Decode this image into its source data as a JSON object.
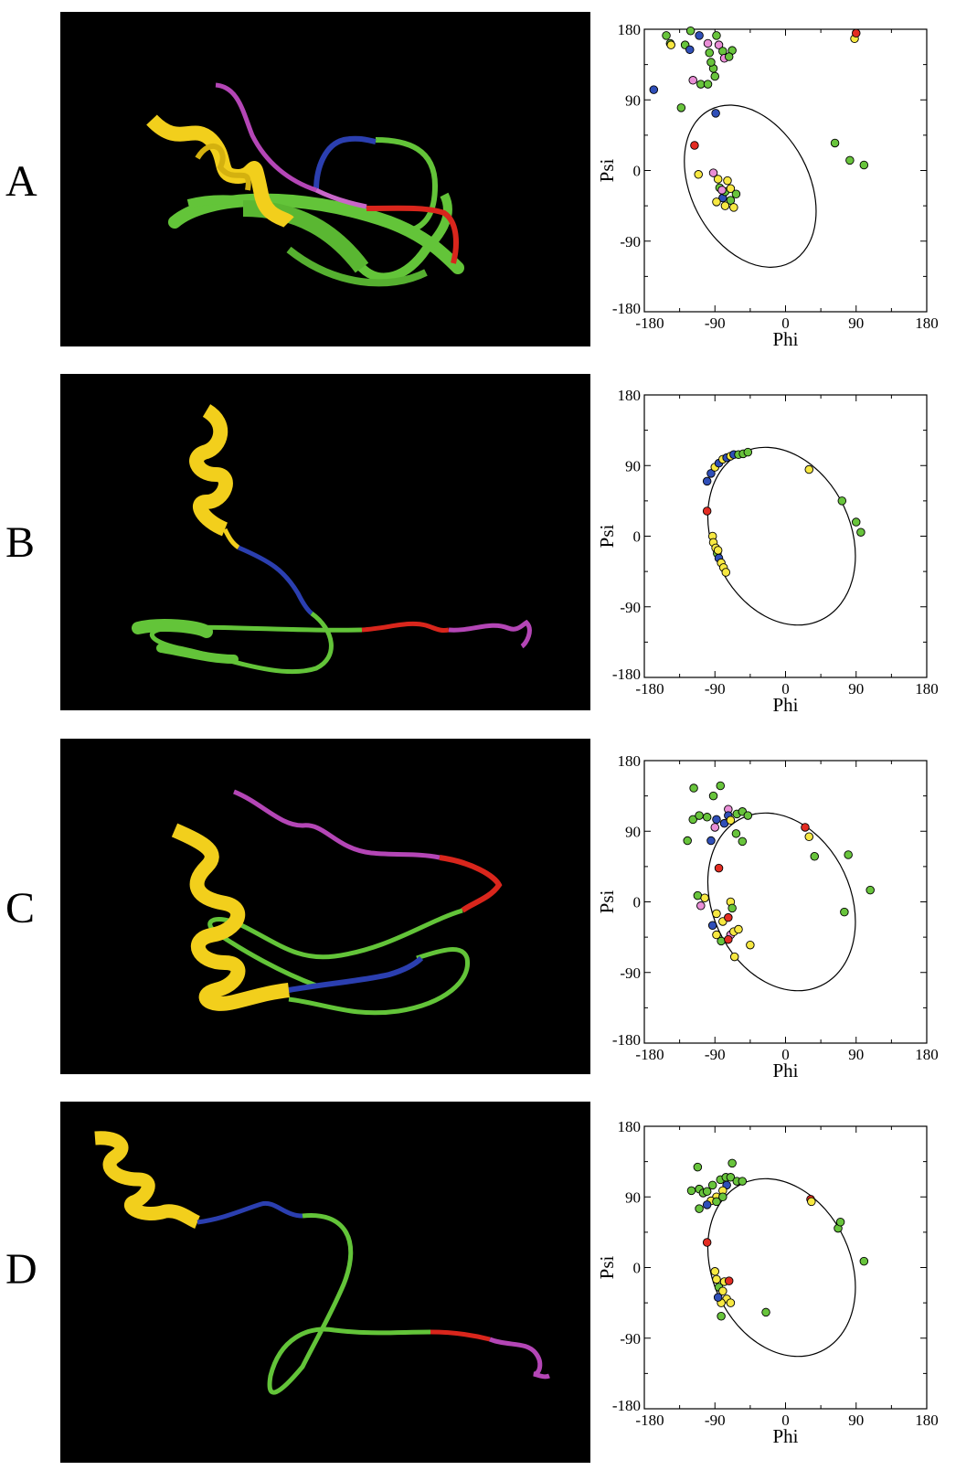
{
  "colors": {
    "helix": "#f2cf1c",
    "blue": "#2b3fb0",
    "green": "#63c439",
    "red": "#d9261c",
    "magenta": "#b446b6",
    "pink": "#e98ed6",
    "yellow_point": "#f7e842",
    "blue_point": "#2f4fb8",
    "green_point": "#68c43c",
    "red_point": "#e32c22"
  },
  "panels": [
    {
      "label": "A",
      "chart_data": {
        "type": "scatter",
        "title": "",
        "xlabel": "Phi",
        "ylabel": "Psi",
        "xlim": [
          -180,
          180
        ],
        "ylim": [
          -180,
          180
        ],
        "xticks": [
          "-180",
          "-90",
          "0",
          "90",
          "180"
        ],
        "yticks": [
          "180",
          "90",
          "0",
          "-90",
          "-180"
        ],
        "ellipse": {
          "cx": -45,
          "cy": -20,
          "rx": 75,
          "ry": 110,
          "rotation_deg": -28
        },
        "points": [
          {
            "phi": -152,
            "psi": 172,
            "c": "green"
          },
          {
            "phi": -147,
            "psi": 162,
            "c": "green"
          },
          {
            "phi": -146,
            "psi": 160,
            "c": "yellow"
          },
          {
            "phi": -128,
            "psi": 160,
            "c": "green"
          },
          {
            "phi": -121,
            "psi": 178,
            "c": "green"
          },
          {
            "phi": -110,
            "psi": 172,
            "c": "blue"
          },
          {
            "phi": -122,
            "psi": 154,
            "c": "blue"
          },
          {
            "phi": -99,
            "psi": 162,
            "c": "pink"
          },
          {
            "phi": -97,
            "psi": 150,
            "c": "green"
          },
          {
            "phi": -88,
            "psi": 172,
            "c": "green"
          },
          {
            "phi": -85,
            "psi": 160,
            "c": "pink"
          },
          {
            "phi": -80,
            "psi": 152,
            "c": "green"
          },
          {
            "phi": -78,
            "psi": 143,
            "c": "pink"
          },
          {
            "phi": -68,
            "psi": 153,
            "c": "green"
          },
          {
            "phi": -72,
            "psi": 145,
            "c": "green"
          },
          {
            "phi": -92,
            "psi": 130,
            "c": "green"
          },
          {
            "phi": -90,
            "psi": 120,
            "c": "green"
          },
          {
            "phi": -95,
            "psi": 138,
            "c": "green"
          },
          {
            "phi": -118,
            "psi": 115,
            "c": "pink"
          },
          {
            "phi": -108,
            "psi": 110,
            "c": "green"
          },
          {
            "phi": -99,
            "psi": 110,
            "c": "green"
          },
          {
            "phi": -133,
            "psi": 80,
            "c": "green"
          },
          {
            "phi": -168,
            "psi": 103,
            "c": "blue"
          },
          {
            "phi": -89,
            "psi": 73,
            "c": "blue"
          },
          {
            "phi": -116,
            "psi": 32,
            "c": "red"
          },
          {
            "phi": -111,
            "psi": -5,
            "c": "yellow"
          },
          {
            "phi": -92,
            "psi": -3,
            "c": "pink"
          },
          {
            "phi": -86,
            "psi": -11,
            "c": "yellow"
          },
          {
            "phi": -84,
            "psi": -22,
            "c": "green"
          },
          {
            "phi": -74,
            "psi": -13,
            "c": "yellow"
          },
          {
            "phi": -80,
            "psi": -35,
            "c": "blue"
          },
          {
            "phi": -77,
            "psi": -27,
            "c": "green"
          },
          {
            "phi": -70,
            "psi": -23,
            "c": "yellow"
          },
          {
            "phi": -88,
            "psi": -40,
            "c": "yellow"
          },
          {
            "phi": -77,
            "psi": -45,
            "c": "yellow"
          },
          {
            "phi": -70,
            "psi": -38,
            "c": "green"
          },
          {
            "phi": -66,
            "psi": -47,
            "c": "yellow"
          },
          {
            "phi": -63,
            "psi": -30,
            "c": "green"
          },
          {
            "phi": -81,
            "psi": -25,
            "c": "pink"
          },
          {
            "phi": 63,
            "psi": 35,
            "c": "green"
          },
          {
            "phi": 82,
            "psi": 13,
            "c": "green"
          },
          {
            "phi": 100,
            "psi": 7,
            "c": "green"
          },
          {
            "phi": 88,
            "psi": 168,
            "c": "yellow"
          },
          {
            "phi": 90,
            "psi": 175,
            "c": "red"
          }
        ]
      }
    },
    {
      "label": "B",
      "chart_data": {
        "type": "scatter",
        "title": "",
        "xlabel": "Phi",
        "ylabel": "Psi",
        "xlim": [
          -180,
          180
        ],
        "ylim": [
          -180,
          180
        ],
        "xticks": [
          "-180",
          "-90",
          "0",
          "90",
          "180"
        ],
        "yticks": [
          "180",
          "90",
          "0",
          "-90",
          "-180"
        ],
        "ellipse": {
          "cx": -5,
          "cy": 0,
          "rx": 88,
          "ry": 118,
          "rotation_deg": -25
        },
        "points": [
          {
            "phi": -100,
            "psi": 32,
            "c": "red"
          },
          {
            "phi": -100,
            "psi": 70,
            "c": "blue"
          },
          {
            "phi": -95,
            "psi": 80,
            "c": "blue"
          },
          {
            "phi": -90,
            "psi": 88,
            "c": "yellow"
          },
          {
            "phi": -85,
            "psi": 93,
            "c": "blue"
          },
          {
            "phi": -80,
            "psi": 98,
            "c": "yellow"
          },
          {
            "phi": -75,
            "psi": 100,
            "c": "blue"
          },
          {
            "phi": -70,
            "psi": 102,
            "c": "yellow"
          },
          {
            "phi": -66,
            "psi": 104,
            "c": "blue"
          },
          {
            "phi": -60,
            "psi": 104,
            "c": "green"
          },
          {
            "phi": -54,
            "psi": 105,
            "c": "green"
          },
          {
            "phi": -48,
            "psi": 107,
            "c": "green"
          },
          {
            "phi": -93,
            "psi": 0,
            "c": "yellow"
          },
          {
            "phi": -92,
            "psi": -8,
            "c": "yellow"
          },
          {
            "phi": -89,
            "psi": -15,
            "c": "yellow"
          },
          {
            "phi": -87,
            "psi": -22,
            "c": "green"
          },
          {
            "phi": -85,
            "psi": -28,
            "c": "blue"
          },
          {
            "phi": -82,
            "psi": -34,
            "c": "yellow"
          },
          {
            "phi": -79,
            "psi": -40,
            "c": "yellow"
          },
          {
            "phi": -76,
            "psi": -46,
            "c": "yellow"
          },
          {
            "phi": -86,
            "psi": -18,
            "c": "yellow"
          },
          {
            "phi": 30,
            "psi": 85,
            "c": "yellow"
          },
          {
            "phi": 72,
            "psi": 45,
            "c": "green"
          },
          {
            "phi": 90,
            "psi": 18,
            "c": "green"
          },
          {
            "phi": 96,
            "psi": 5,
            "c": "green"
          }
        ]
      }
    },
    {
      "label": "C",
      "chart_data": {
        "type": "scatter",
        "title": "",
        "xlabel": "Phi",
        "ylabel": "Psi",
        "xlim": [
          -180,
          180
        ],
        "ylim": [
          -180,
          180
        ],
        "xticks": [
          "-180",
          "-90",
          "0",
          "90",
          "180"
        ],
        "yticks": [
          "180",
          "90",
          "0",
          "-90",
          "-180"
        ],
        "ellipse": {
          "cx": -5,
          "cy": 0,
          "rx": 88,
          "ry": 118,
          "rotation_deg": -25
        },
        "points": [
          {
            "phi": -117,
            "psi": 145,
            "c": "green"
          },
          {
            "phi": -92,
            "psi": 135,
            "c": "green"
          },
          {
            "phi": -83,
            "psi": 148,
            "c": "green"
          },
          {
            "phi": -118,
            "psi": 105,
            "c": "green"
          },
          {
            "phi": -110,
            "psi": 110,
            "c": "green"
          },
          {
            "phi": -100,
            "psi": 108,
            "c": "green"
          },
          {
            "phi": -88,
            "psi": 105,
            "c": "blue"
          },
          {
            "phi": -78,
            "psi": 100,
            "c": "blue"
          },
          {
            "phi": -73,
            "psi": 118,
            "c": "pink"
          },
          {
            "phi": -73,
            "psi": 110,
            "c": "blue"
          },
          {
            "phi": -70,
            "psi": 104,
            "c": "yellow"
          },
          {
            "phi": -62,
            "psi": 112,
            "c": "green"
          },
          {
            "phi": -55,
            "psi": 115,
            "c": "green"
          },
          {
            "phi": -48,
            "psi": 110,
            "c": "green"
          },
          {
            "phi": -90,
            "psi": 95,
            "c": "pink"
          },
          {
            "phi": -63,
            "psi": 87,
            "c": "green"
          },
          {
            "phi": -55,
            "psi": 77,
            "c": "green"
          },
          {
            "phi": -95,
            "psi": 78,
            "c": "blue"
          },
          {
            "phi": -125,
            "psi": 78,
            "c": "green"
          },
          {
            "phi": -85,
            "psi": 43,
            "c": "red"
          },
          {
            "phi": -112,
            "psi": 8,
            "c": "green"
          },
          {
            "phi": -108,
            "psi": -5,
            "c": "pink"
          },
          {
            "phi": -103,
            "psi": 5,
            "c": "yellow"
          },
          {
            "phi": -70,
            "psi": 0,
            "c": "yellow"
          },
          {
            "phi": -68,
            "psi": -8,
            "c": "green"
          },
          {
            "phi": -88,
            "psi": -15,
            "c": "yellow"
          },
          {
            "phi": -80,
            "psi": -25,
            "c": "yellow"
          },
          {
            "phi": -73,
            "psi": -20,
            "c": "red"
          },
          {
            "phi": -93,
            "psi": -30,
            "c": "blue"
          },
          {
            "phi": -88,
            "psi": -42,
            "c": "yellow"
          },
          {
            "phi": -82,
            "psi": -50,
            "c": "green"
          },
          {
            "phi": -70,
            "psi": -42,
            "c": "pink"
          },
          {
            "phi": -66,
            "psi": -38,
            "c": "yellow"
          },
          {
            "phi": -60,
            "psi": -35,
            "c": "yellow"
          },
          {
            "phi": -73,
            "psi": -48,
            "c": "red"
          },
          {
            "phi": -45,
            "psi": -55,
            "c": "yellow"
          },
          {
            "phi": -65,
            "psi": -70,
            "c": "yellow"
          },
          {
            "phi": 25,
            "psi": 95,
            "c": "red"
          },
          {
            "phi": 30,
            "psi": 83,
            "c": "yellow"
          },
          {
            "phi": 37,
            "psi": 58,
            "c": "green"
          },
          {
            "phi": 80,
            "psi": 60,
            "c": "green"
          },
          {
            "phi": 108,
            "psi": 15,
            "c": "green"
          },
          {
            "phi": 75,
            "psi": -13,
            "c": "green"
          }
        ]
      }
    },
    {
      "label": "D",
      "chart_data": {
        "type": "scatter",
        "title": "",
        "xlabel": "Phi",
        "ylabel": "Psi",
        "xlim": [
          -180,
          180
        ],
        "ylim": [
          -180,
          180
        ],
        "xticks": [
          "-180",
          "-90",
          "0",
          "90",
          "180"
        ],
        "yticks": [
          "180",
          "90",
          "0",
          "-90",
          "-180"
        ],
        "ellipse": {
          "cx": -5,
          "cy": 0,
          "rx": 88,
          "ry": 118,
          "rotation_deg": -25
        },
        "points": [
          {
            "phi": -112,
            "psi": 128,
            "c": "green"
          },
          {
            "phi": -68,
            "psi": 133,
            "c": "green"
          },
          {
            "phi": -120,
            "psi": 98,
            "c": "green"
          },
          {
            "phi": -110,
            "psi": 100,
            "c": "green"
          },
          {
            "phi": -105,
            "psi": 95,
            "c": "green"
          },
          {
            "phi": -100,
            "psi": 97,
            "c": "green"
          },
          {
            "phi": -93,
            "psi": 105,
            "c": "green"
          },
          {
            "phi": -83,
            "psi": 112,
            "c": "green"
          },
          {
            "phi": -76,
            "psi": 115,
            "c": "green"
          },
          {
            "phi": -70,
            "psi": 115,
            "c": "green"
          },
          {
            "phi": -62,
            "psi": 110,
            "c": "green"
          },
          {
            "phi": -55,
            "psi": 110,
            "c": "green"
          },
          {
            "phi": -75,
            "psi": 105,
            "c": "blue"
          },
          {
            "phi": -80,
            "psi": 98,
            "c": "yellow"
          },
          {
            "phi": -88,
            "psi": 90,
            "c": "yellow"
          },
          {
            "phi": -95,
            "psi": 85,
            "c": "yellow"
          },
          {
            "phi": -100,
            "psi": 80,
            "c": "blue"
          },
          {
            "phi": -88,
            "psi": 84,
            "c": "green"
          },
          {
            "phi": -80,
            "psi": 90,
            "c": "green"
          },
          {
            "phi": -110,
            "psi": 75,
            "c": "green"
          },
          {
            "phi": -100,
            "psi": 32,
            "c": "red"
          },
          {
            "phi": -90,
            "psi": -5,
            "c": "yellow"
          },
          {
            "phi": -88,
            "psi": -15,
            "c": "yellow"
          },
          {
            "phi": -85,
            "psi": -25,
            "c": "green"
          },
          {
            "phi": -78,
            "psi": -18,
            "c": "yellow"
          },
          {
            "phi": -72,
            "psi": -17,
            "c": "red"
          },
          {
            "phi": -80,
            "psi": -30,
            "c": "yellow"
          },
          {
            "phi": -75,
            "psi": -40,
            "c": "yellow"
          },
          {
            "phi": -70,
            "psi": -45,
            "c": "yellow"
          },
          {
            "phi": -82,
            "psi": -45,
            "c": "yellow"
          },
          {
            "phi": -86,
            "psi": -38,
            "c": "blue"
          },
          {
            "phi": -82,
            "psi": -62,
            "c": "green"
          },
          {
            "phi": -25,
            "psi": -57,
            "c": "green"
          },
          {
            "phi": 32,
            "psi": 87,
            "c": "red"
          },
          {
            "phi": 33,
            "psi": 84,
            "c": "yellow"
          },
          {
            "phi": 67,
            "psi": 50,
            "c": "green"
          },
          {
            "phi": 70,
            "psi": 58,
            "c": "green"
          },
          {
            "phi": 100,
            "psi": 8,
            "c": "green"
          }
        ]
      }
    }
  ]
}
